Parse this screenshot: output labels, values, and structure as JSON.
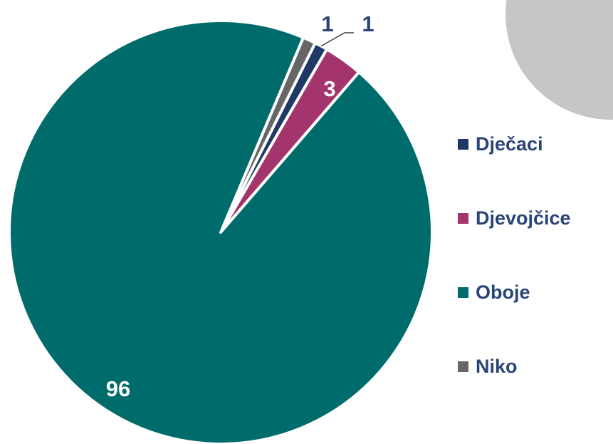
{
  "chart_data": {
    "type": "pie",
    "categories": [
      "Dječaci",
      "Djevojčice",
      "Oboje",
      "Niko"
    ],
    "values": [
      1,
      3,
      96,
      1
    ],
    "data_labels": [
      "1",
      "3",
      "96",
      "1"
    ],
    "legend_position": "right",
    "colors": {
      "Dječaci": "#1f3864",
      "Djevojčice": "#a3346c",
      "Oboje": "#006b6b",
      "Niko": "#666666"
    }
  },
  "legend": {
    "items": [
      {
        "label": "Dječaci",
        "color": "#1f3864"
      },
      {
        "label": "Djevojčice",
        "color": "#a3346c"
      },
      {
        "label": "Oboje",
        "color": "#006b6b"
      },
      {
        "label": "Niko",
        "color": "#666666"
      }
    ]
  },
  "theme": {
    "label_color_dark": "#2a4477",
    "label_color_light": "#ffffff",
    "decor_circle_color": "#c6c6c6"
  }
}
